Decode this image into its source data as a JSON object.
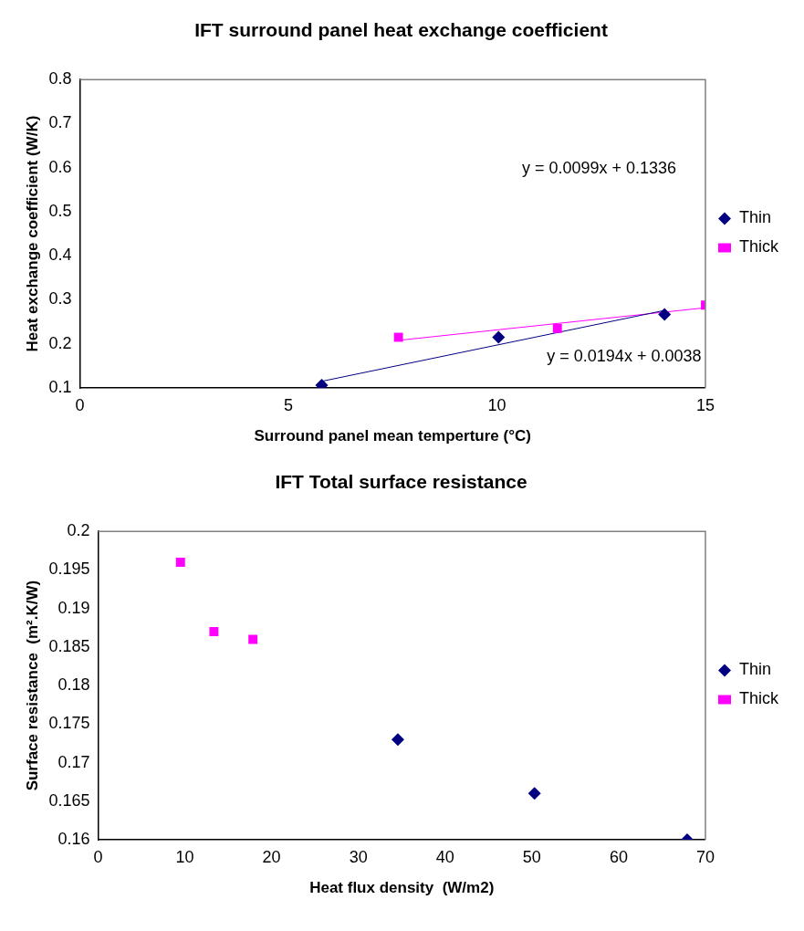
{
  "chart_data": [
    {
      "type": "scatter",
      "title": "IFT surround panel heat exchange coefficient",
      "xlabel": "Surround panel mean temperture (°C)",
      "ylabel": "Heat exchange coefficient (W/K)",
      "series": [
        {
          "name": "Thin",
          "type": "scatter",
          "color": "#000080",
          "marker": "diamond",
          "x": [
            5.8,
            10.04,
            14.02
          ],
          "values": [
            0.106,
            0.215,
            0.267
          ]
        },
        {
          "name": "Thick",
          "type": "scatter",
          "color": "#ff00ff",
          "marker": "square",
          "x": [
            7.64,
            11.45,
            15.0
          ],
          "values": [
            0.215,
            0.235,
            0.288
          ]
        },
        {
          "type": "line",
          "color": "#000080",
          "marker": "none",
          "x": [
            5.8,
            14.02
          ],
          "values": [
            0.115,
            0.276
          ]
        },
        {
          "type": "line",
          "color": "#ff00ff",
          "marker": "none",
          "x": [
            7.64,
            15.0
          ],
          "values": [
            0.208,
            0.282
          ]
        }
      ],
      "xlim": [
        0,
        15
      ],
      "xticks": [
        0,
        5,
        10,
        15
      ],
      "ylim": [
        0.1,
        0.8
      ],
      "yticks": [
        0.1,
        0.2,
        0.3,
        0.4,
        0.5,
        0.6,
        0.7,
        0.8
      ],
      "annotations": [
        "y = 0.0099x + 0.1336",
        "y = 0.0194x + 0.0038"
      ],
      "grid": false,
      "legend": "right"
    },
    {
      "type": "scatter",
      "title": "IFT Total surface resistance",
      "xlabel": "Heat flux density  (W/m2)",
      "ylabel": "Surface resistance  (m².K/W)",
      "series": [
        {
          "name": "Thin",
          "type": "scatter",
          "color": "#000080",
          "marker": "diamond",
          "x": [
            34.55,
            50.3,
            67.9
          ],
          "values": [
            0.173,
            0.166,
            0.16
          ]
        },
        {
          "name": "Thick",
          "type": "scatter",
          "color": "#ff00ff",
          "marker": "square",
          "x": [
            9.5,
            13.35,
            17.85
          ],
          "values": [
            0.196,
            0.187,
            0.186
          ]
        }
      ],
      "xlim": [
        0,
        70
      ],
      "xticks": [
        0,
        10,
        20,
        30,
        40,
        50,
        60,
        70
      ],
      "ylim": [
        0.16,
        0.2
      ],
      "yticks": [
        0.16,
        0.165,
        0.17,
        0.175,
        0.18,
        0.185,
        0.19,
        0.195,
        0.2
      ],
      "grid": false,
      "legend": "right"
    }
  ]
}
